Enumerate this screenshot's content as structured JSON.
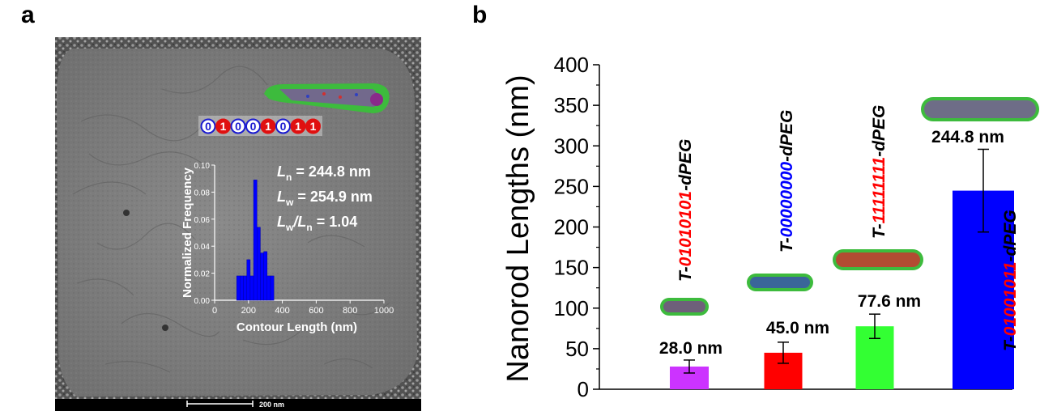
{
  "panel_labels": {
    "a": "a",
    "b": "b"
  },
  "micrograph": {
    "sequence": [
      "0",
      "1",
      "0",
      "0",
      "1",
      "0",
      "1",
      "1"
    ],
    "stats": [
      {
        "sym": "L",
        "sub": "n",
        "rest": " = 244.8 nm"
      },
      {
        "sym": "L",
        "sub": "w",
        "rest": " = 254.9 nm"
      },
      {
        "sym": "L",
        "sub": "w",
        "mid": "/L",
        "sub2": "n",
        "rest": " = 1.04"
      }
    ],
    "scale_bar": "200 nm"
  },
  "chart_data": [
    {
      "type": "bar",
      "title": "",
      "xlabel": "Contour Length (nm)",
      "ylabel": "Normalized Frequency",
      "xlim": [
        0,
        1000
      ],
      "ylim": [
        0,
        0.1
      ],
      "xticks": [
        "0",
        "200",
        "400",
        "600",
        "800",
        "1000"
      ],
      "yticks": [
        "0.00",
        "0.02",
        "0.04",
        "0.06",
        "0.08",
        "0.10"
      ],
      "bin_width": 20,
      "x": [
        140,
        160,
        180,
        200,
        220,
        240,
        260,
        280,
        300,
        320,
        340
      ],
      "values": [
        0.018,
        0.018,
        0.018,
        0.03,
        0.018,
        0.089,
        0.054,
        0.035,
        0.036,
        0.018,
        0.018
      ]
    },
    {
      "type": "bar",
      "title": "",
      "xlabel": "",
      "ylabel": "Nanorod Lengths (nm)",
      "ylim": [
        0,
        400
      ],
      "yticks": [
        "0",
        "50",
        "100",
        "150",
        "200",
        "250",
        "300",
        "350",
        "400"
      ],
      "categories": [
        [
          {
            "t": "T-",
            "c": "#000000"
          },
          {
            "t": "01010101",
            "c": "#ff0000"
          },
          {
            "t": "-dPEG",
            "c": "#000000"
          }
        ],
        [
          {
            "t": "T-",
            "c": "#000000"
          },
          {
            "t": "00000000",
            "c": "#0000ff"
          },
          {
            "t": "-dPEG",
            "c": "#000000"
          }
        ],
        [
          {
            "t": "T-",
            "c": "#000000"
          },
          {
            "t": "11111111",
            "c": "#ff0000"
          },
          {
            "t": "-dPEG",
            "c": "#000000"
          }
        ],
        [
          {
            "t": "T-",
            "c": "#000000"
          },
          {
            "t": "01001011",
            "c": "#ff0000"
          },
          {
            "t": "-dPEG",
            "c": "#000000"
          }
        ]
      ],
      "values": [
        28.0,
        45.0,
        77.6,
        244.8
      ],
      "errors": [
        8,
        13,
        15,
        51
      ],
      "labels": [
        "28.0 nm",
        "45.0 nm",
        "77.6 nm",
        "244.8 nm"
      ],
      "colors": [
        "#cc33ff",
        "#ff0000",
        "#33ff33",
        "#0000ff"
      ]
    }
  ]
}
